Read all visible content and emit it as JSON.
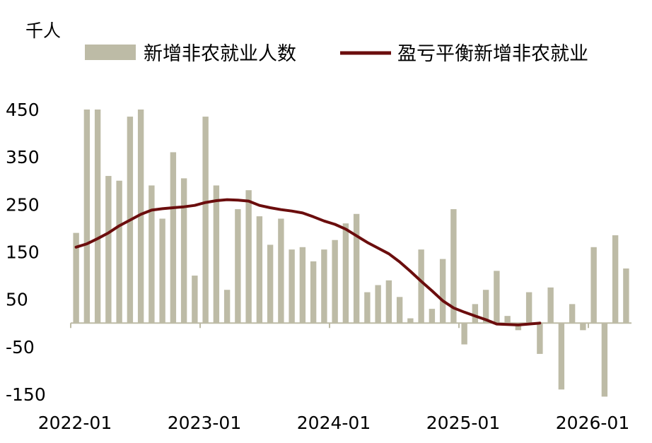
{
  "chart_data": {
    "type": "bar+line",
    "unit_label": "千人",
    "legend": [
      {
        "label": "新增非农就业人数",
        "kind": "bar",
        "color": "#bdbba6"
      },
      {
        "label": "盈亏平衡新增非农就业",
        "kind": "line",
        "color": "#6b0d0d"
      }
    ],
    "y_ticks": [
      "450",
      "350",
      "250",
      "150",
      "50",
      "-50",
      "-150"
    ],
    "y_tick_values": [
      450,
      350,
      250,
      150,
      50,
      -50,
      -150
    ],
    "ylim": [
      -150,
      450
    ],
    "x_ticks": [
      "2022-01",
      "2023-01",
      "2024-01",
      "2025-01",
      "2026-01"
    ],
    "x_tick_index": [
      0,
      12,
      24,
      36,
      48
    ],
    "bars": {
      "name": "新增非农就业人数",
      "values": [
        190,
        450,
        450,
        310,
        300,
        435,
        450,
        290,
        220,
        360,
        305,
        100,
        435,
        290,
        70,
        240,
        280,
        225,
        165,
        220,
        155,
        160,
        130,
        155,
        175,
        210,
        230,
        65,
        80,
        90,
        55,
        10,
        155,
        30,
        135,
        240,
        -45,
        40,
        70,
        110,
        15,
        -15,
        65,
        -65,
        75,
        -140,
        40,
        -15,
        160,
        -155,
        185,
        115
      ]
    },
    "line": {
      "name": "盈亏平衡新增非农就业",
      "values": [
        160,
        167,
        178,
        190,
        205,
        217,
        229,
        238,
        241,
        243,
        245,
        248,
        254,
        258,
        260,
        259,
        257,
        248,
        243,
        239,
        236,
        232,
        224,
        215,
        208,
        198,
        184,
        170,
        158,
        146,
        129,
        109,
        88,
        68,
        47,
        32,
        23,
        15,
        7,
        -2,
        -3,
        -4,
        -2,
        0
      ]
    }
  }
}
